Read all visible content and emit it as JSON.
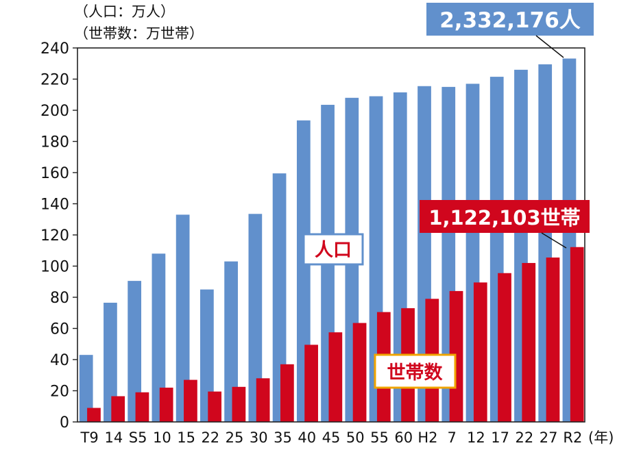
{
  "chart_data": {
    "type": "bar",
    "units": [
      "（人口：万人）",
      "（世帯数：万世帯）"
    ],
    "year_suffix": "(年)",
    "categories": [
      "T9",
      "14",
      "S5",
      "10",
      "15",
      "22",
      "25",
      "30",
      "35",
      "40",
      "45",
      "50",
      "55",
      "60",
      "H2",
      "7",
      "12",
      "17",
      "22",
      "27",
      "R2"
    ],
    "series": [
      {
        "name": "人口",
        "color": "#6190cc",
        "values": [
          43,
          76.5,
          90.5,
          108,
          133,
          85,
          103,
          133.5,
          159.5,
          193.5,
          203.5,
          208,
          209,
          211.5,
          215.5,
          215,
          217,
          221.5,
          226,
          229.5,
          233.2
        ]
      },
      {
        "name": "世帯数",
        "color": "#d0061d",
        "values": [
          9,
          16.5,
          19,
          22,
          27,
          19.5,
          22.5,
          28,
          37,
          49.5,
          57.5,
          63.5,
          70.5,
          73,
          79,
          84,
          89.5,
          95.5,
          102,
          105.5,
          112.2
        ]
      }
    ],
    "ylim": [
      0,
      240
    ],
    "yticks": [
      0,
      20,
      40,
      60,
      80,
      100,
      120,
      140,
      160,
      180,
      200,
      220,
      240
    ],
    "annotations": {
      "population_total": "2,332,176人",
      "household_total": "1,122,103世帯"
    }
  }
}
